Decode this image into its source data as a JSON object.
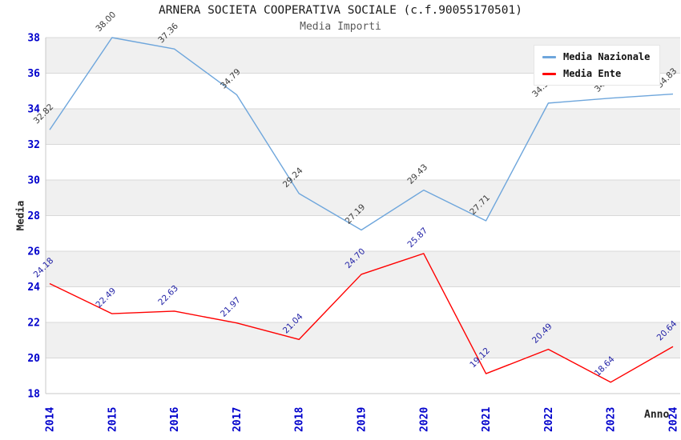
{
  "chart_data": {
    "type": "line",
    "title": "ARNERA SOCIETA COOPERATIVA SOCIALE (c.f.90055170501)",
    "subtitle": "Media Importi",
    "xlabel": "Anno",
    "ylabel": "Media",
    "categories": [
      "2014",
      "2015",
      "2016",
      "2017",
      "2018",
      "2019",
      "2020",
      "2021",
      "2022",
      "2023",
      "2024"
    ],
    "series": [
      {
        "name": "Media Nazionale",
        "color": "#6EA6DC",
        "label_color": "#3C3C3C",
        "values": [
          32.82,
          38.0,
          37.36,
          34.79,
          29.24,
          27.19,
          29.43,
          27.71,
          34.32,
          34.6,
          34.83
        ]
      },
      {
        "name": "Media Ente",
        "color": "#FF0000",
        "label_color": "#2222A6",
        "values": [
          24.18,
          22.49,
          22.63,
          21.97,
          21.04,
          24.7,
          25.87,
          19.12,
          20.49,
          18.64,
          20.64
        ]
      }
    ],
    "ylim": [
      18,
      38
    ],
    "ytick_step": 2,
    "yticks": [
      "18",
      "20",
      "22",
      "24",
      "26",
      "28",
      "30",
      "32",
      "34",
      "36",
      "38"
    ],
    "grid": true,
    "legend_position": "top-right",
    "colors": {
      "tick_label": "#0000CC",
      "band": "#F0F0F0",
      "gridline": "#D8D8D8",
      "spine": "#C8C8C8",
      "title": "#1A1A1A",
      "subtitle": "#595959"
    }
  }
}
